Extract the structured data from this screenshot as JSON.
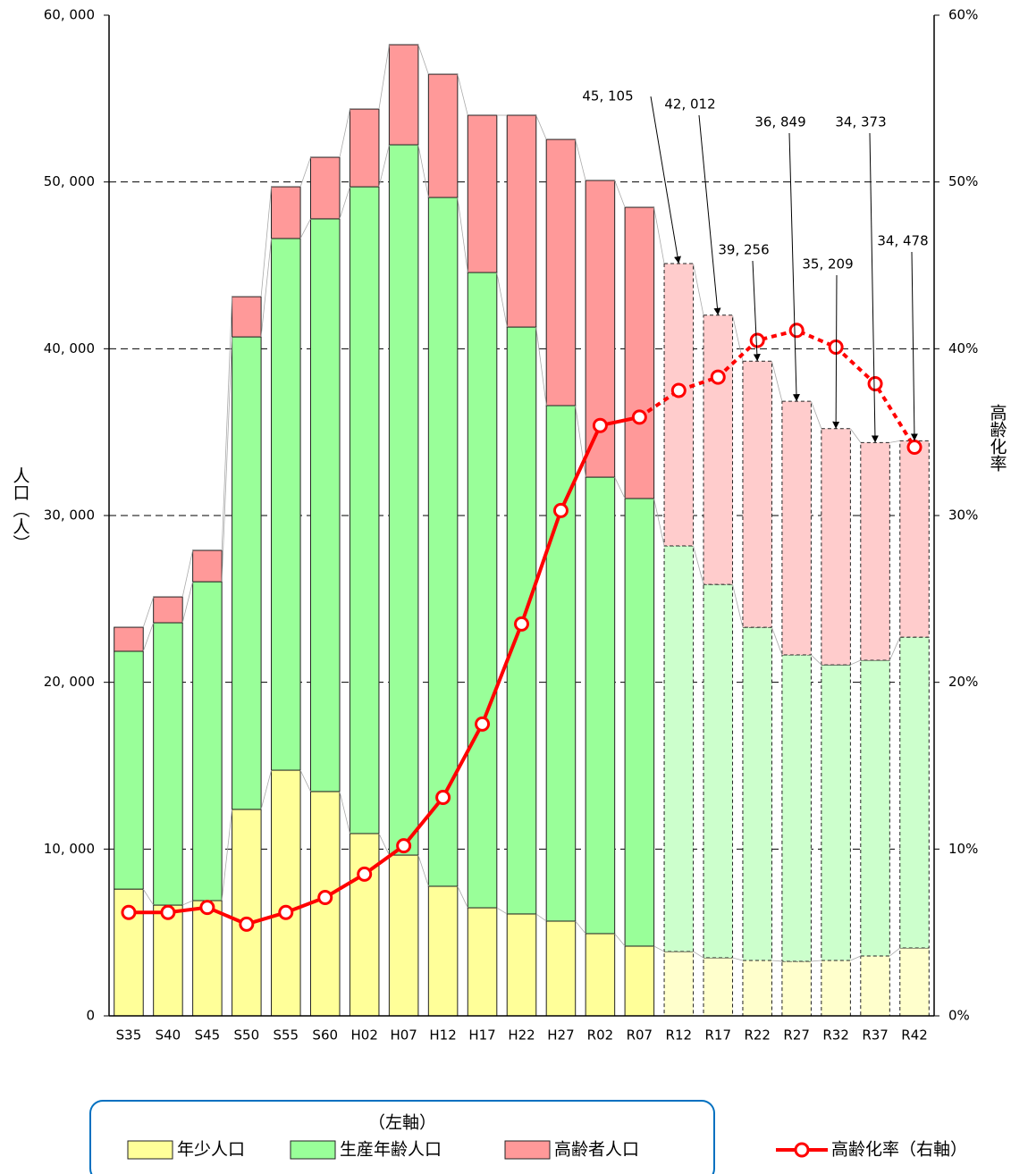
{
  "chart_data": {
    "type": "stacked_bar_line",
    "categories": [
      "S35",
      "S40",
      "S45",
      "S50",
      "S55",
      "S60",
      "H02",
      "H07",
      "H12",
      "H17",
      "H22",
      "H27",
      "R02",
      "R07",
      "R12",
      "R17",
      "R22",
      "R27",
      "R32",
      "R37",
      "R42"
    ],
    "projected_from": "R12",
    "y_label": "人口（人）",
    "y2_label": "高齢化率",
    "legend_title": "（左軸）",
    "series": [
      {
        "name": "年少人口",
        "color": "#ffff99",
        "projected_color": "#ffffcc",
        "values": [
          7600,
          6640,
          6910,
          12380,
          14730,
          13450,
          10930,
          9640,
          7770,
          6480,
          6110,
          5680,
          4930,
          4180,
          3860,
          3480,
          3320,
          3270,
          3320,
          3590,
          4070
        ]
      },
      {
        "name": "生産年齢人口",
        "color": "#99ff99",
        "projected_color": "#ccffcc",
        "values": [
          14260,
          16930,
          19120,
          28330,
          31880,
          34340,
          38780,
          42590,
          41300,
          38090,
          35190,
          30910,
          27370,
          26840,
          24320,
          22390,
          19980,
          18370,
          17730,
          17730,
          18640
        ]
      },
      {
        "name": "高齢者人口",
        "color": "#ff9999",
        "projected_color": "#ffcccc",
        "values": [
          1440,
          1550,
          1880,
          2410,
          3100,
          3690,
          4660,
          6000,
          7390,
          9430,
          12700,
          15960,
          17790,
          17460,
          16925,
          16142,
          15956,
          15209,
          14159,
          13053,
          11768
        ]
      },
      {
        "name": "高齢化率（右軸）",
        "color": "#ff0000",
        "axis": "y2",
        "type": "line",
        "values": [
          6.2,
          6.2,
          6.5,
          5.5,
          6.2,
          7.1,
          8.5,
          10.2,
          13.1,
          17.5,
          23.5,
          30.3,
          35.4,
          35.9,
          37.5,
          38.3,
          40.5,
          41.1,
          40.1,
          37.9,
          34.1
        ]
      }
    ],
    "annotations": [
      {
        "category": "R12",
        "label": "45, 105"
      },
      {
        "category": "R17",
        "label": "42, 012"
      },
      {
        "category": "R22",
        "label": "39, 256"
      },
      {
        "category": "R27",
        "label": "36, 849"
      },
      {
        "category": "R32",
        "label": "35, 209"
      },
      {
        "category": "R37",
        "label": "34, 373"
      },
      {
        "category": "R42",
        "label": "34, 478"
      }
    ],
    "ylim": [
      0,
      60000
    ],
    "yticks": [
      0,
      {
        "value": 10000,
        "label": "10, 000"
      },
      {
        "value": 20000,
        "label": "20, 000"
      },
      {
        "value": 30000,
        "label": "30, 000"
      },
      {
        "value": 40000,
        "label": "40, 000"
      },
      {
        "value": 50000,
        "label": "50, 000"
      },
      {
        "value": 60000,
        "label": "60, 000"
      }
    ],
    "y2lim": [
      0,
      60
    ],
    "y2ticks": [
      {
        "value": 0,
        "label": "0%"
      },
      {
        "value": 10,
        "label": "10%"
      },
      {
        "value": 20,
        "label": "20%"
      },
      {
        "value": 30,
        "label": "30%"
      },
      {
        "value": 40,
        "label": "40%"
      },
      {
        "value": 50,
        "label": "50%"
      },
      {
        "value": 60,
        "label": "60%"
      }
    ],
    "grid": true
  }
}
